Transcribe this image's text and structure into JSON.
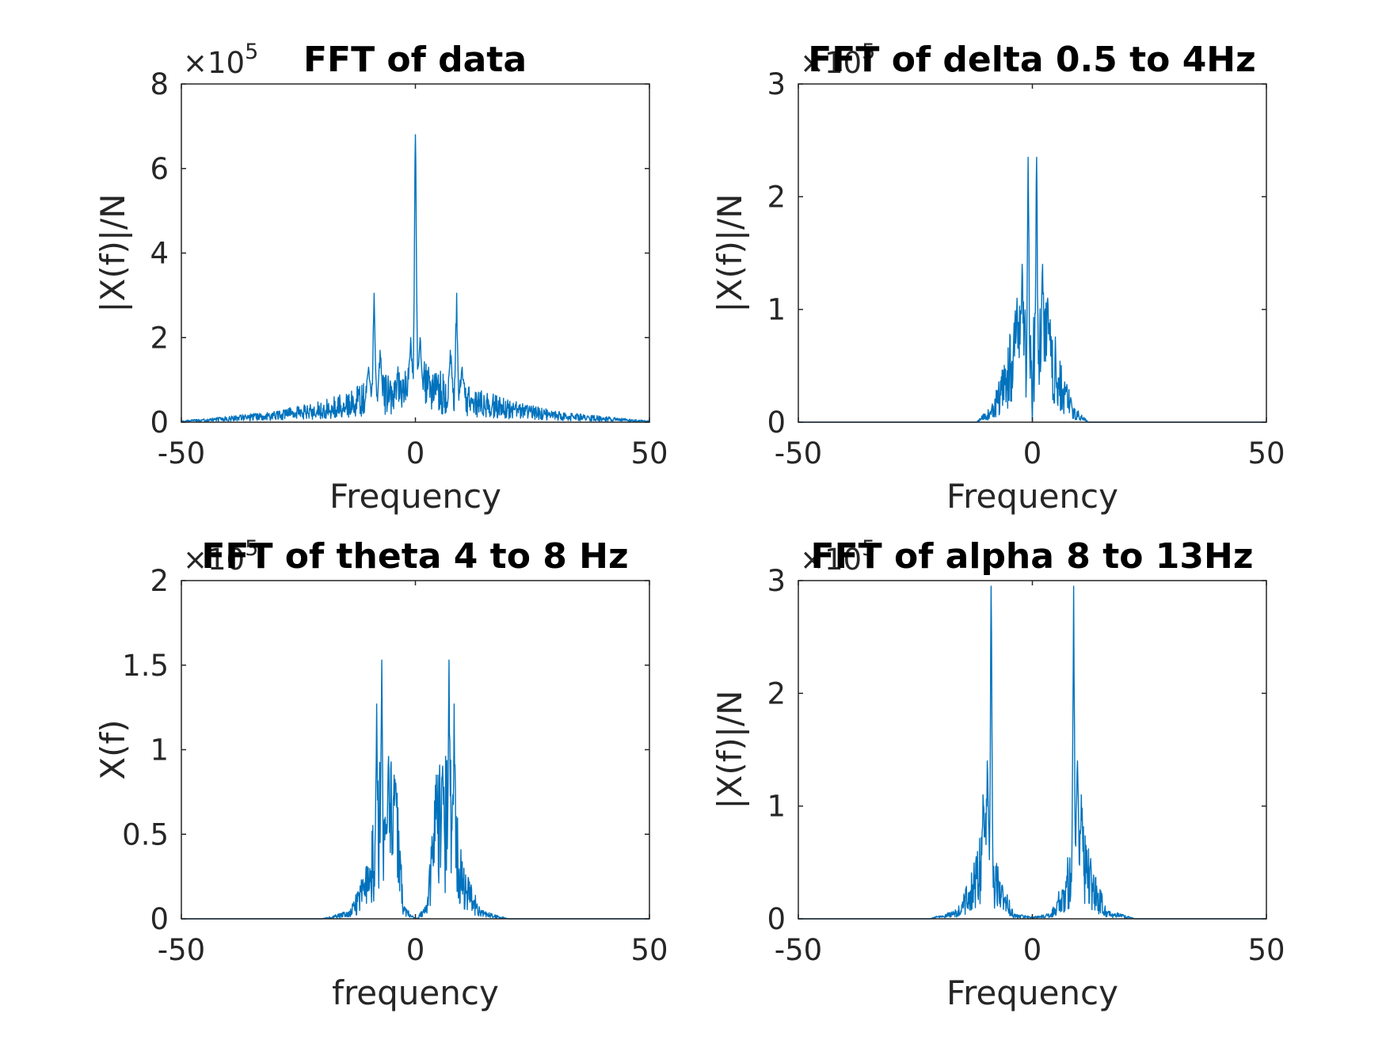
{
  "colors": {
    "series": "#0072BD",
    "axis": "#262626",
    "title": "#000000"
  },
  "chart_data": [
    {
      "type": "line",
      "title": "FFT of data",
      "xlabel": "Frequency",
      "ylabel": "|X(f)|/N",
      "xlim": [
        -50,
        50
      ],
      "ylim": [
        0,
        800000
      ],
      "xticks": [
        "-50",
        "0",
        "50"
      ],
      "yticks": [
        "0",
        "2",
        "4",
        "6",
        "8"
      ],
      "multiplier": {
        "base": "×10",
        "exp": "5"
      },
      "grid": false,
      "series": [
        {
          "color": "#0072BD",
          "peaks": [
            {
              "x": 0,
              "y": 680000,
              "w": 0.25
            },
            {
              "x": -8.8,
              "y": 305000,
              "w": 0.25
            },
            {
              "x": 8.8,
              "y": 305000,
              "w": 0.25
            },
            {
              "x": -1.0,
              "y": 200000,
              "w": 0.5
            },
            {
              "x": 1.0,
              "y": 200000,
              "w": 0.5
            },
            {
              "x": -7.5,
              "y": 170000,
              "w": 0.4
            },
            {
              "x": 7.5,
              "y": 170000,
              "w": 0.4
            },
            {
              "x": -10,
              "y": 130000,
              "w": 0.5
            },
            {
              "x": 10,
              "y": 130000,
              "w": 0.5
            }
          ],
          "envelope": [
            [
              -50,
              2000
            ],
            [
              -40,
              8000
            ],
            [
              -30,
              15000
            ],
            [
              -20,
              30000
            ],
            [
              -12,
              50000
            ],
            [
              -5,
              70000
            ],
            [
              0,
              90000
            ],
            [
              5,
              70000
            ],
            [
              12,
              50000
            ],
            [
              20,
              30000
            ],
            [
              30,
              15000
            ],
            [
              40,
              8000
            ],
            [
              50,
              2000
            ]
          ]
        }
      ]
    },
    {
      "type": "line",
      "title": "FFT of delta 0.5 to 4Hz",
      "xlabel": "Frequency",
      "ylabel": "|X(f)|/N",
      "xlim": [
        -50,
        50
      ],
      "ylim": [
        0,
        300000
      ],
      "xticks": [
        "-50",
        "0",
        "50"
      ],
      "yticks": [
        "0",
        "1",
        "2",
        "3"
      ],
      "multiplier": {
        "base": "×10",
        "exp": "5"
      },
      "grid": false,
      "series": [
        {
          "color": "#0072BD",
          "peaks": [
            {
              "x": -0.9,
              "y": 235000,
              "w": 0.2
            },
            {
              "x": 0.9,
              "y": 235000,
              "w": 0.2
            },
            {
              "x": -2.2,
              "y": 140000,
              "w": 0.3
            },
            {
              "x": 2.2,
              "y": 140000,
              "w": 0.3
            },
            {
              "x": -3.3,
              "y": 110000,
              "w": 0.3
            },
            {
              "x": 3.3,
              "y": 110000,
              "w": 0.3
            }
          ],
          "envelope": [
            [
              -50,
              0
            ],
            [
              -12,
              0
            ],
            [
              -9,
              8000
            ],
            [
              -6,
              30000
            ],
            [
              -3,
              70000
            ],
            [
              -0.3,
              60000
            ],
            [
              0,
              0
            ],
            [
              0.3,
              60000
            ],
            [
              3,
              70000
            ],
            [
              6,
              30000
            ],
            [
              9,
              8000
            ],
            [
              12,
              0
            ],
            [
              50,
              0
            ]
          ]
        }
      ]
    },
    {
      "type": "line",
      "title": "FFT of theta 4 to 8 Hz",
      "xlabel": "frequency",
      "ylabel": "X(f)",
      "xlim": [
        -50,
        50
      ],
      "ylim": [
        0,
        200000
      ],
      "xticks": [
        "-50",
        "0",
        "50"
      ],
      "yticks": [
        "0",
        "0.5",
        "1",
        "1.5",
        "2"
      ],
      "multiplier": {
        "base": "×10",
        "exp": "5"
      },
      "grid": false,
      "series": [
        {
          "color": "#0072BD",
          "peaks": [
            {
              "x": -7.2,
              "y": 153000,
              "w": 0.2
            },
            {
              "x": 7.2,
              "y": 153000,
              "w": 0.2
            },
            {
              "x": -8.3,
              "y": 127000,
              "w": 0.2
            },
            {
              "x": 8.3,
              "y": 127000,
              "w": 0.2
            },
            {
              "x": -5.8,
              "y": 90000,
              "w": 0.3
            },
            {
              "x": 5.8,
              "y": 90000,
              "w": 0.3
            },
            {
              "x": -4.5,
              "y": 85000,
              "w": 0.3
            },
            {
              "x": 4.5,
              "y": 85000,
              "w": 0.3
            }
          ],
          "envelope": [
            [
              -50,
              0
            ],
            [
              -20,
              0
            ],
            [
              -14,
              3000
            ],
            [
              -10,
              20000
            ],
            [
              -8,
              55000
            ],
            [
              -6,
              60000
            ],
            [
              -4,
              45000
            ],
            [
              -2.5,
              5000
            ],
            [
              0,
              0
            ],
            [
              2.5,
              5000
            ],
            [
              4,
              45000
            ],
            [
              6,
              60000
            ],
            [
              8,
              55000
            ],
            [
              10,
              20000
            ],
            [
              14,
              3000
            ],
            [
              20,
              0
            ],
            [
              50,
              0
            ]
          ]
        }
      ]
    },
    {
      "type": "line",
      "title": "FFT of alpha 8 to 13Hz",
      "xlabel": "Frequency",
      "ylabel": "|X(f)|/N",
      "xlim": [
        -50,
        50
      ],
      "ylim": [
        0,
        300000
      ],
      "xticks": [
        "-50",
        "0",
        "50"
      ],
      "yticks": [
        "0",
        "1",
        "2",
        "3"
      ],
      "multiplier": {
        "base": "×10",
        "exp": "5"
      },
      "grid": false,
      "series": [
        {
          "color": "#0072BD",
          "peaks": [
            {
              "x": -8.8,
              "y": 295000,
              "w": 0.2
            },
            {
              "x": 8.8,
              "y": 295000,
              "w": 0.2
            },
            {
              "x": -9.6,
              "y": 140000,
              "w": 0.3
            },
            {
              "x": 9.6,
              "y": 140000,
              "w": 0.3
            },
            {
              "x": -10.5,
              "y": 110000,
              "w": 0.3
            },
            {
              "x": 10.5,
              "y": 110000,
              "w": 0.3
            }
          ],
          "envelope": [
            [
              -50,
              0
            ],
            [
              -22,
              0
            ],
            [
              -16,
              5000
            ],
            [
              -13,
              25000
            ],
            [
              -10,
              60000
            ],
            [
              -7,
              25000
            ],
            [
              -4,
              3000
            ],
            [
              0,
              1000
            ],
            [
              4,
              3000
            ],
            [
              7,
              25000
            ],
            [
              10,
              60000
            ],
            [
              13,
              25000
            ],
            [
              16,
              5000
            ],
            [
              22,
              0
            ],
            [
              50,
              0
            ]
          ]
        }
      ]
    }
  ]
}
